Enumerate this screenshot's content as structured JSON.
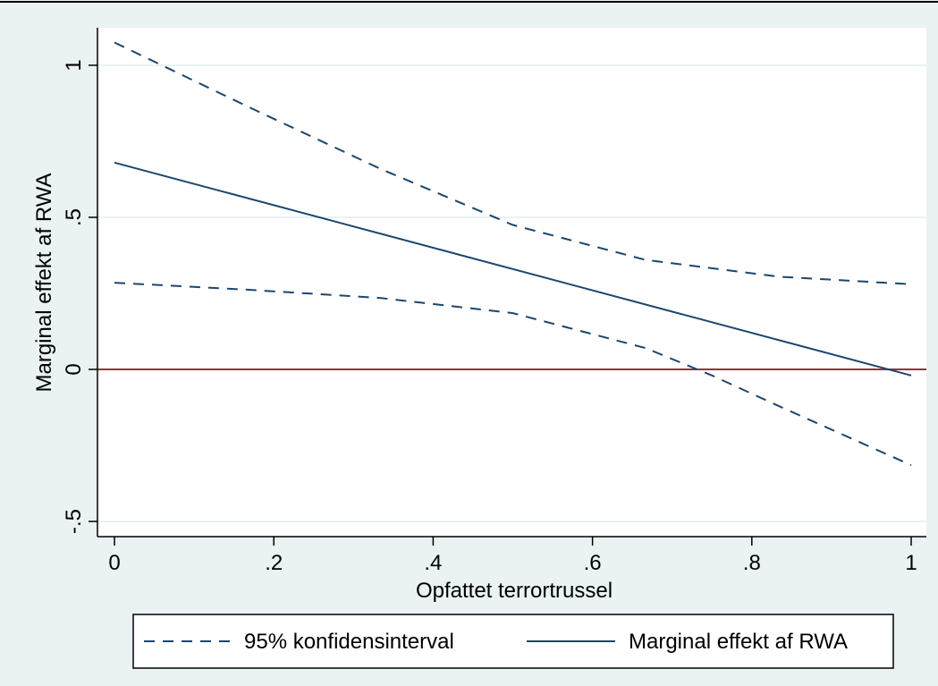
{
  "colors": {
    "outer_background": "#eaf2f3",
    "plot_background": "#ffffff",
    "gridline": "#eaf2f3",
    "series_line": "#1a476f",
    "reference_line": "#90353b",
    "axis": "#000000"
  },
  "chart_data": {
    "type": "line",
    "xlabel": "Opfattet terrortrussel",
    "ylabel": "Marginal effekt af RWA",
    "xlim": [
      0,
      1
    ],
    "ylim": [
      -0.55,
      1.12
    ],
    "x_ticks": [
      0,
      0.2,
      0.4,
      0.6,
      0.8,
      1
    ],
    "x_tick_labels": [
      "0",
      ".2",
      ".4",
      ".6",
      ".8",
      "1"
    ],
    "y_ticks": [
      -0.5,
      0,
      0.5,
      1
    ],
    "y_tick_labels": [
      "-.5",
      "0",
      ".5",
      "1"
    ],
    "grid": true,
    "reference_line": {
      "y": 0
    },
    "legend_position": "bottom",
    "series": [
      {
        "name": "Marginal effekt af RWA",
        "style": "solid",
        "x": [
          0,
          1
        ],
        "y": [
          0.68,
          -0.02
        ]
      },
      {
        "name": "95% konfidensinterval",
        "style": "dashed",
        "x": [
          0,
          0.1667,
          0.3333,
          0.5,
          0.6667,
          0.8333,
          1
        ],
        "y": [
          1.075,
          0.865,
          0.66,
          0.475,
          0.36,
          0.305,
          0.28
        ]
      },
      {
        "style": "dashed",
        "x": [
          0,
          0.1667,
          0.3333,
          0.5,
          0.6667,
          0.75,
          0.8333,
          1
        ],
        "y": [
          0.285,
          0.262,
          0.235,
          0.185,
          0.07,
          -0.02,
          -0.12,
          -0.315
        ]
      }
    ]
  },
  "legend": {
    "items": [
      {
        "label": "95% konfidensinterval",
        "style": "dashed"
      },
      {
        "label": "Marginal effekt af RWA",
        "style": "solid"
      }
    ]
  }
}
